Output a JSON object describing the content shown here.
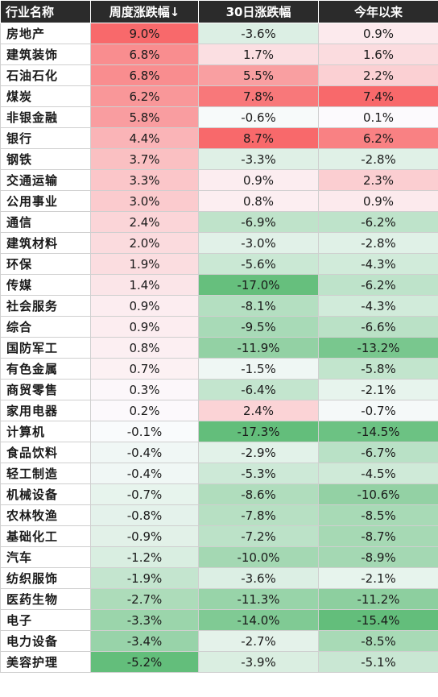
{
  "chart_data": {
    "type": "table",
    "columns": [
      "行业名称",
      "周度涨跌幅↓",
      "30日涨跌幅",
      "今年以来"
    ],
    "rows": [
      {
        "name": "房地产",
        "week": 9.0,
        "d30": -3.6,
        "ytd": 0.9
      },
      {
        "name": "建筑装饰",
        "week": 6.8,
        "d30": 1.7,
        "ytd": 1.6
      },
      {
        "name": "石油石化",
        "week": 6.8,
        "d30": 5.5,
        "ytd": 2.2
      },
      {
        "name": "煤炭",
        "week": 6.2,
        "d30": 7.8,
        "ytd": 7.4
      },
      {
        "name": "非银金融",
        "week": 5.8,
        "d30": -0.6,
        "ytd": 0.1
      },
      {
        "name": "银行",
        "week": 4.4,
        "d30": 8.7,
        "ytd": 6.2
      },
      {
        "name": "钢铁",
        "week": 3.7,
        "d30": -3.3,
        "ytd": -2.8
      },
      {
        "name": "交通运输",
        "week": 3.3,
        "d30": 0.9,
        "ytd": 2.3
      },
      {
        "name": "公用事业",
        "week": 3.0,
        "d30": 0.8,
        "ytd": 0.9
      },
      {
        "name": "通信",
        "week": 2.4,
        "d30": -6.9,
        "ytd": -6.2
      },
      {
        "name": "建筑材料",
        "week": 2.0,
        "d30": -3.0,
        "ytd": -2.8
      },
      {
        "name": "环保",
        "week": 1.9,
        "d30": -5.6,
        "ytd": -4.3
      },
      {
        "name": "传媒",
        "week": 1.4,
        "d30": -17.0,
        "ytd": -6.2
      },
      {
        "name": "社会服务",
        "week": 0.9,
        "d30": -8.1,
        "ytd": -4.3
      },
      {
        "name": "综合",
        "week": 0.9,
        "d30": -9.5,
        "ytd": -6.6
      },
      {
        "name": "国防军工",
        "week": 0.8,
        "d30": -11.9,
        "ytd": -13.2
      },
      {
        "name": "有色金属",
        "week": 0.7,
        "d30": -1.5,
        "ytd": -5.8
      },
      {
        "name": "商贸零售",
        "week": 0.3,
        "d30": -6.4,
        "ytd": -2.1
      },
      {
        "name": "家用电器",
        "week": 0.2,
        "d30": 2.4,
        "ytd": -0.7
      },
      {
        "name": "计算机",
        "week": -0.1,
        "d30": -17.3,
        "ytd": -14.5
      },
      {
        "name": "食品饮料",
        "week": -0.4,
        "d30": -2.9,
        "ytd": -6.7
      },
      {
        "name": "轻工制造",
        "week": -0.4,
        "d30": -5.3,
        "ytd": -4.5
      },
      {
        "name": "机械设备",
        "week": -0.7,
        "d30": -8.6,
        "ytd": -10.6
      },
      {
        "name": "农林牧渔",
        "week": -0.8,
        "d30": -7.8,
        "ytd": -8.5
      },
      {
        "name": "基础化工",
        "week": -0.9,
        "d30": -7.2,
        "ytd": -8.7
      },
      {
        "name": "汽车",
        "week": -1.2,
        "d30": -10.0,
        "ytd": -8.9
      },
      {
        "name": "纺织服饰",
        "week": -1.9,
        "d30": -3.6,
        "ytd": -2.1
      },
      {
        "name": "医药生物",
        "week": -2.7,
        "d30": -11.3,
        "ytd": -11.2
      },
      {
        "name": "电子",
        "week": -3.3,
        "d30": -14.0,
        "ytd": -15.4
      },
      {
        "name": "电力设备",
        "week": -3.4,
        "d30": -2.7,
        "ytd": -8.5
      },
      {
        "name": "美容护理",
        "week": -5.2,
        "d30": -3.9,
        "ytd": -5.1
      }
    ],
    "sort": {
      "column": "周度涨跌幅↓",
      "order": "descending"
    },
    "colors": {
      "positive": "#f8696b",
      "neutral": "#fcfcff",
      "negative": "#63be7b"
    }
  }
}
